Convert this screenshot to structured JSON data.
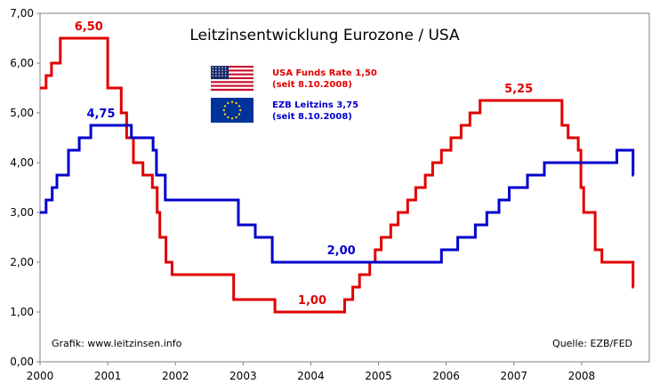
{
  "chart_data": {
    "type": "line",
    "title": "Leitzinsentwicklung Eurozone / USA",
    "xlabel": "",
    "ylabel": "",
    "xlim": [
      2000,
      2009.0
    ],
    "ylim": [
      0,
      7
    ],
    "yticks": [
      "0,00",
      "1,00",
      "2,00",
      "3,00",
      "4,00",
      "5,00",
      "6,00",
      "7,00"
    ],
    "xticks": [
      {
        "label": "2000",
        "value": 2000
      },
      {
        "label": "2001",
        "value": 2001
      },
      {
        "label": "2002",
        "value": 2002
      },
      {
        "label": "2003",
        "value": 2003
      },
      {
        "label": "2004",
        "value": 2004
      },
      {
        "label": "2005",
        "value": 2005
      },
      {
        "label": "2006",
        "value": 2006
      },
      {
        "label": "2007",
        "value": 2007
      },
      {
        "label": "2008",
        "value": 2008
      }
    ],
    "grid": false,
    "legend": [
      {
        "line1": "USA Funds Rate 1,50",
        "line2": "(seit 8.10.2008)",
        "color": "#e00000",
        "flag": "us-flag"
      },
      {
        "line1": "EZB Leitzins 3,75",
        "line2": "(seit 8.10.2008)",
        "color": "#0000cc",
        "flag": "eu-flag"
      }
    ],
    "series": [
      {
        "color": "#e00000",
        "steps": [
          [
            2000.0,
            5.5
          ],
          [
            2000.09,
            5.75
          ],
          [
            2000.17,
            6.0
          ],
          [
            2000.3,
            6.5
          ],
          [
            2001.0,
            5.5
          ],
          [
            2001.2,
            5.0
          ],
          [
            2001.28,
            4.5
          ],
          [
            2001.38,
            4.0
          ],
          [
            2001.52,
            3.75
          ],
          [
            2001.66,
            3.5
          ],
          [
            2001.73,
            3.0
          ],
          [
            2001.77,
            2.5
          ],
          [
            2001.86,
            2.0
          ],
          [
            2001.95,
            1.75
          ],
          [
            2002.86,
            1.25
          ],
          [
            2003.47,
            1.0
          ],
          [
            2004.5,
            1.25
          ],
          [
            2004.62,
            1.5
          ],
          [
            2004.72,
            1.75
          ],
          [
            2004.87,
            2.0
          ],
          [
            2004.95,
            2.25
          ],
          [
            2005.04,
            2.5
          ],
          [
            2005.18,
            2.75
          ],
          [
            2005.29,
            3.0
          ],
          [
            2005.43,
            3.25
          ],
          [
            2005.55,
            3.5
          ],
          [
            2005.69,
            3.75
          ],
          [
            2005.8,
            4.0
          ],
          [
            2005.93,
            4.25
          ],
          [
            2006.07,
            4.5
          ],
          [
            2006.22,
            4.75
          ],
          [
            2006.35,
            5.0
          ],
          [
            2006.5,
            5.25
          ],
          [
            2007.71,
            4.75
          ],
          [
            2007.8,
            4.5
          ],
          [
            2007.95,
            4.25
          ],
          [
            2007.99,
            3.5
          ],
          [
            2008.03,
            3.0
          ],
          [
            2008.2,
            2.25
          ],
          [
            2008.3,
            2.0
          ],
          [
            2008.76,
            1.5
          ],
          [
            2008.77,
            1.5
          ]
        ]
      },
      {
        "color": "#0000cc",
        "steps": [
          [
            2000.0,
            3.0
          ],
          [
            2000.09,
            3.25
          ],
          [
            2000.18,
            3.5
          ],
          [
            2000.25,
            3.75
          ],
          [
            2000.42,
            4.25
          ],
          [
            2000.58,
            4.5
          ],
          [
            2000.75,
            4.75
          ],
          [
            2001.35,
            4.5
          ],
          [
            2001.67,
            4.25
          ],
          [
            2001.72,
            3.75
          ],
          [
            2001.85,
            3.25
          ],
          [
            2002.93,
            2.75
          ],
          [
            2003.18,
            2.5
          ],
          [
            2003.43,
            2.0
          ],
          [
            2005.93,
            2.25
          ],
          [
            2006.17,
            2.5
          ],
          [
            2006.43,
            2.75
          ],
          [
            2006.6,
            3.0
          ],
          [
            2006.78,
            3.25
          ],
          [
            2006.93,
            3.5
          ],
          [
            2007.2,
            3.75
          ],
          [
            2007.45,
            4.0
          ],
          [
            2008.52,
            4.25
          ],
          [
            2008.76,
            3.75
          ],
          [
            2008.77,
            3.75
          ]
        ]
      }
    ],
    "annotations": [
      {
        "text": "6,50",
        "x": 2000.72,
        "y": 6.5,
        "color": "#e00000"
      },
      {
        "text": "4,75",
        "x": 2000.9,
        "y": 4.75,
        "color": "#0000cc"
      },
      {
        "text": "2,00",
        "x": 2004.45,
        "y": 2.0,
        "color": "#0000cc"
      },
      {
        "text": "1,00",
        "x": 2004.02,
        "y": 1.0,
        "color": "#e00000"
      },
      {
        "text": "5,25",
        "x": 2007.07,
        "y": 5.25,
        "color": "#e00000"
      }
    ],
    "credit_left": "Grafik: www.leitzinsen.info",
    "credit_right": "Quelle: EZB/FED"
  }
}
